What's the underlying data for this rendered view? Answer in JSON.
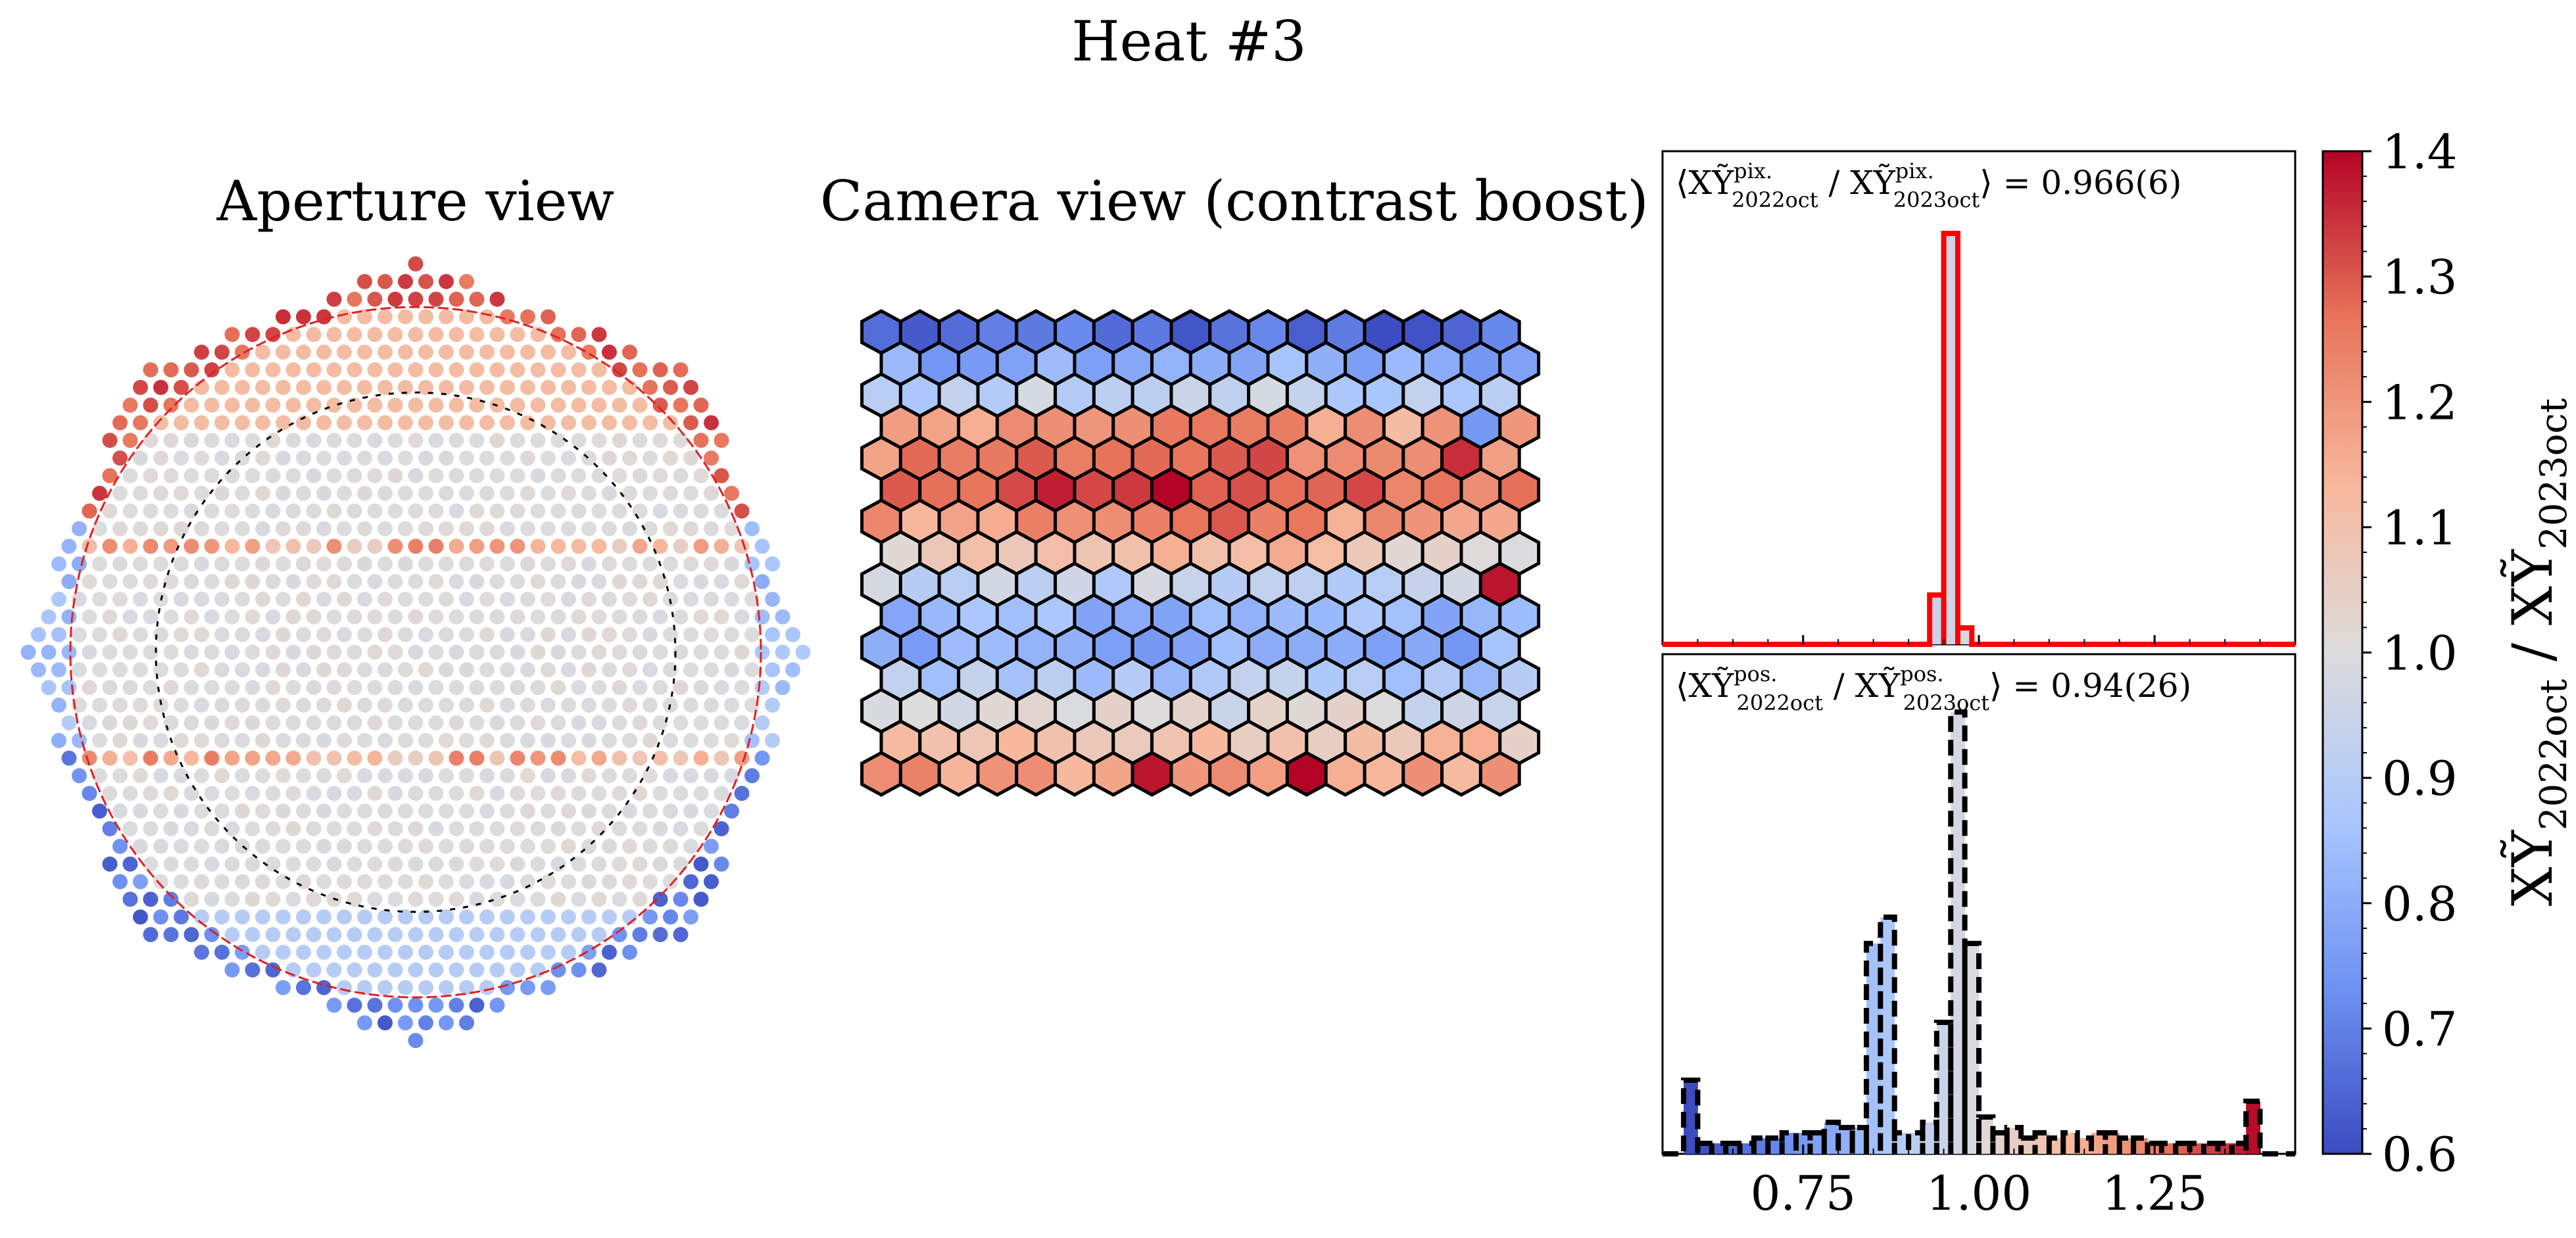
{
  "figure": {
    "suptitle": "Heat #3"
  },
  "colors": {
    "cmap": [
      "#3b4cc0",
      "#6f92f3",
      "#aac7fd",
      "#dddcdc",
      "#f7b89c",
      "#e7745b",
      "#b40426"
    ],
    "hist_top_line": "#ff0000",
    "hist_bottom_line": "#000000",
    "aperture_rim": "#e02020"
  },
  "chart_data": [
    {
      "type": "heatmap",
      "title": "Aperture view",
      "description_mode": "hexagonal mirror-facet map coloured by ratio",
      "value_pattern": {
        "top_rim": 1.35,
        "upper_band": 1.12,
        "bright_rows": 1.25,
        "center": 1.0,
        "lower_side": 0.8,
        "bottom_rim": 0.62
      }
    },
    {
      "type": "heatmap",
      "title": "Camera view (contrast boost)",
      "grid": {
        "columns": 17,
        "rows": 15
      },
      "row_mean_values": [
        0.66,
        0.8,
        0.92,
        1.15,
        1.22,
        1.25,
        1.17,
        1.05,
        0.93,
        0.83,
        0.8,
        0.88,
        0.98,
        1.1,
        1.18
      ],
      "hot_pixels": [
        {
          "row": 5,
          "col": 7,
          "value": 1.4
        },
        {
          "row": 4,
          "col": 15,
          "value": 1.35
        },
        {
          "row": 8,
          "col": 16,
          "value": 1.38
        },
        {
          "row": 14,
          "col": 7,
          "value": 1.38
        },
        {
          "row": 14,
          "col": 11,
          "value": 1.4
        },
        {
          "row": 3,
          "col": 15,
          "value": 0.75
        }
      ]
    },
    {
      "type": "histogram",
      "annotation": "⟨XỸ / XỸ⟩ = 0.966(6)",
      "annotation_parts": {
        "numer": "XỸ",
        "denom": "XỸ",
        "sup": "pix.",
        "sub_numer": "2022oct",
        "sub_denom": "2023oct",
        "value": "0.966(6)"
      },
      "xlim": [
        0.55,
        1.45
      ],
      "bins": [
        0.94,
        0.96,
        0.98
      ],
      "counts": [
        0.12,
        1.0,
        0.04
      ],
      "ylim": [
        0,
        1.2
      ],
      "line_style": "solid"
    },
    {
      "type": "histogram",
      "annotation": "⟨XỸ / XỸ⟩ = 0.94(26)",
      "annotation_parts": {
        "numer": "XỸ",
        "denom": "XỸ",
        "sup": "pos.",
        "sub_numer": "2022oct",
        "sub_denom": "2023oct",
        "value": "0.94(26)"
      },
      "xlim": [
        0.55,
        1.45
      ],
      "xticks": [
        0.75,
        1.0,
        1.25
      ],
      "xtick_labels": [
        "0.75",
        "1.00",
        "1.25"
      ],
      "bins": [
        0.59,
        0.61,
        0.63,
        0.65,
        0.67,
        0.69,
        0.71,
        0.73,
        0.75,
        0.77,
        0.79,
        0.81,
        0.83,
        0.85,
        0.87,
        0.89,
        0.91,
        0.93,
        0.95,
        0.97,
        0.99,
        1.01,
        1.03,
        1.05,
        1.07,
        1.09,
        1.11,
        1.13,
        1.15,
        1.17,
        1.19,
        1.21,
        1.23,
        1.25,
        1.27,
        1.29,
        1.31,
        1.33,
        1.35,
        1.37,
        1.39
      ],
      "counts": [
        0.14,
        0.02,
        0.02,
        0.02,
        0.02,
        0.03,
        0.03,
        0.04,
        0.04,
        0.04,
        0.06,
        0.05,
        0.05,
        0.4,
        0.45,
        0.04,
        0.04,
        0.06,
        0.25,
        0.84,
        0.4,
        0.07,
        0.04,
        0.05,
        0.03,
        0.04,
        0.03,
        0.04,
        0.03,
        0.04,
        0.04,
        0.03,
        0.03,
        0.02,
        0.02,
        0.02,
        0.02,
        0.02,
        0.02,
        0.02,
        0.1
      ],
      "ylim": [
        0,
        0.95
      ],
      "line_style": "dashed"
    },
    {
      "type": "colorbar",
      "label_parts": {
        "numer": "XỸ",
        "numer_sub": "2022oct",
        "denom": "XỸ",
        "denom_sub": "2023oct"
      },
      "range": [
        0.6,
        1.4
      ],
      "ticks": [
        0.6,
        0.7,
        0.8,
        0.9,
        1.0,
        1.1,
        1.2,
        1.3,
        1.4
      ],
      "tick_labels": [
        "0.6",
        "0.7",
        "0.8",
        "0.9",
        "1.0",
        "1.1",
        "1.2",
        "1.3",
        "1.4"
      ]
    }
  ]
}
